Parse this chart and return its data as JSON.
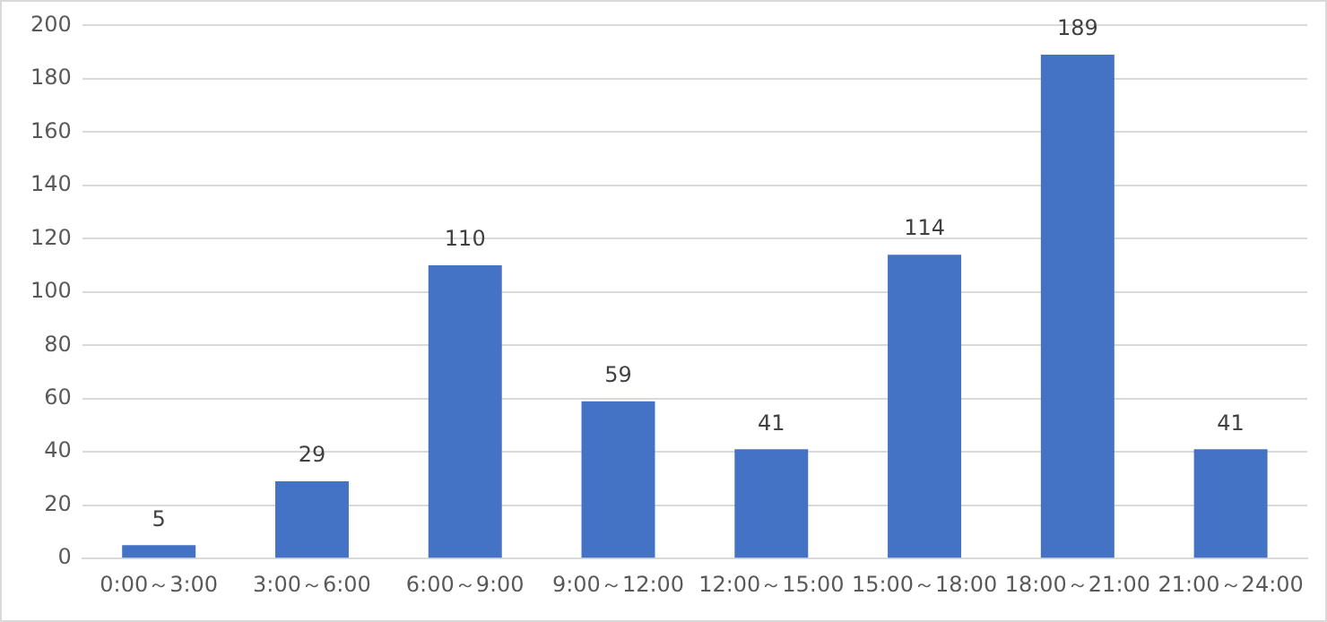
{
  "chart_data": {
    "type": "bar",
    "categories": [
      "0:00～3:00",
      "3:00～6:00",
      "6:00～9:00",
      "9:00～12:00",
      "12:00～15:00",
      "15:00～18:00",
      "18:00～21:00",
      "21:00～24:00"
    ],
    "values": [
      5,
      29,
      110,
      59,
      41,
      114,
      189,
      41
    ],
    "color": "#4472c4",
    "ylim": [
      0,
      200
    ],
    "yticks": [
      0,
      20,
      40,
      60,
      80,
      100,
      120,
      140,
      160,
      180,
      200
    ],
    "grid": "y",
    "data_labels": true,
    "legend": false
  }
}
